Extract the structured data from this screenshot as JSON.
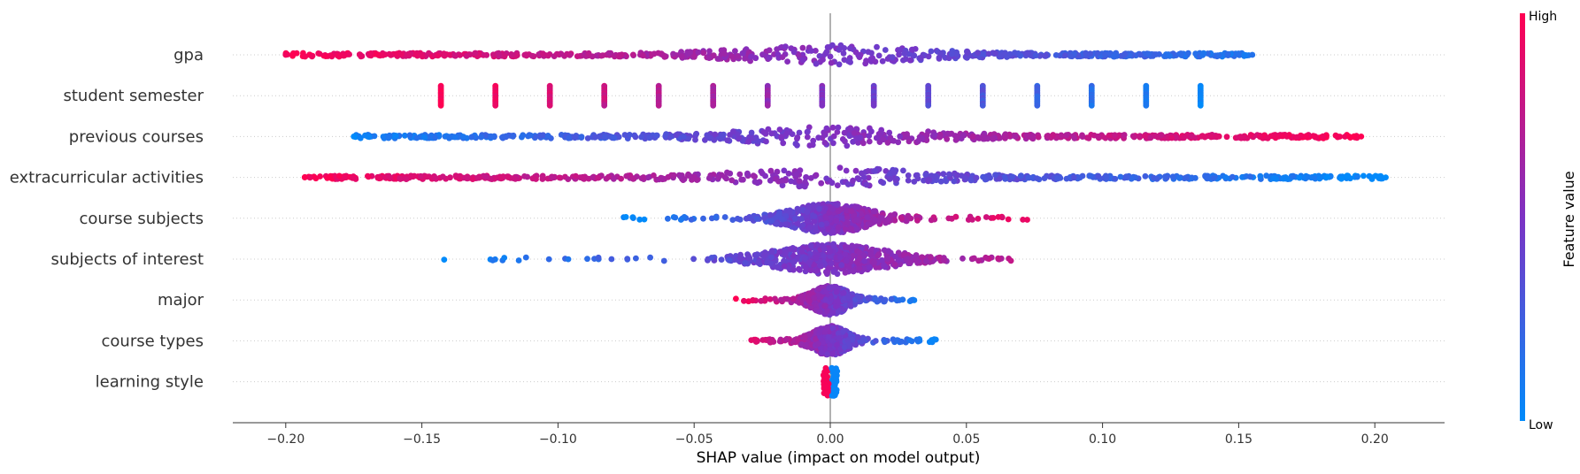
{
  "chart_data": {
    "type": "scatter",
    "subtype": "shap-beeswarm",
    "title": "",
    "xlabel": "SHAP value (impact on model output)",
    "xlim": [
      -0.22,
      0.225
    ],
    "xticks": [
      -0.2,
      -0.15,
      -0.1,
      -0.05,
      0.0,
      0.05,
      0.1,
      0.15,
      0.2
    ],
    "xtick_labels": [
      "−0.20",
      "−0.15",
      "−0.10",
      "−0.05",
      "0.00",
      "0.05",
      "0.10",
      "0.15",
      "0.20"
    ],
    "features": [
      {
        "name": "gpa",
        "min": -0.2,
        "max": 0.155,
        "high_side": "negative",
        "pattern": "spread"
      },
      {
        "name": "student semester",
        "min": -0.143,
        "max": 0.136,
        "high_side": "negative",
        "pattern": "discrete",
        "levels": [
          -0.143,
          -0.123,
          -0.103,
          -0.083,
          -0.063,
          -0.043,
          -0.023,
          -0.003,
          0.016,
          0.036,
          0.056,
          0.076,
          0.096,
          0.116,
          0.136
        ]
      },
      {
        "name": "previous courses",
        "min": -0.175,
        "max": 0.195,
        "high_side": "positive",
        "pattern": "spread"
      },
      {
        "name": "extracurricular activities",
        "min": -0.193,
        "max": 0.204,
        "high_side": "negative",
        "pattern": "spread"
      },
      {
        "name": "course subjects",
        "min": -0.077,
        "max": 0.074,
        "high_side": "positive",
        "pattern": "center"
      },
      {
        "name": "subjects of interest",
        "min": -0.146,
        "max": 0.068,
        "high_side": "positive",
        "pattern": "center"
      },
      {
        "name": "major",
        "min": -0.036,
        "max": 0.031,
        "high_side": "negative",
        "pattern": "center"
      },
      {
        "name": "course types",
        "min": -0.029,
        "max": 0.039,
        "high_side": "negative",
        "pattern": "center"
      },
      {
        "name": "learning style",
        "min": -0.004,
        "max": 0.003,
        "high_side": "negative",
        "pattern": "split"
      }
    ],
    "colorbar": {
      "label": "Feature value",
      "high_label": "High",
      "low_label": "Low",
      "high_color": "#ff0052",
      "low_color": "#008bfb"
    },
    "grid": false,
    "legend": "colorbar-right"
  }
}
